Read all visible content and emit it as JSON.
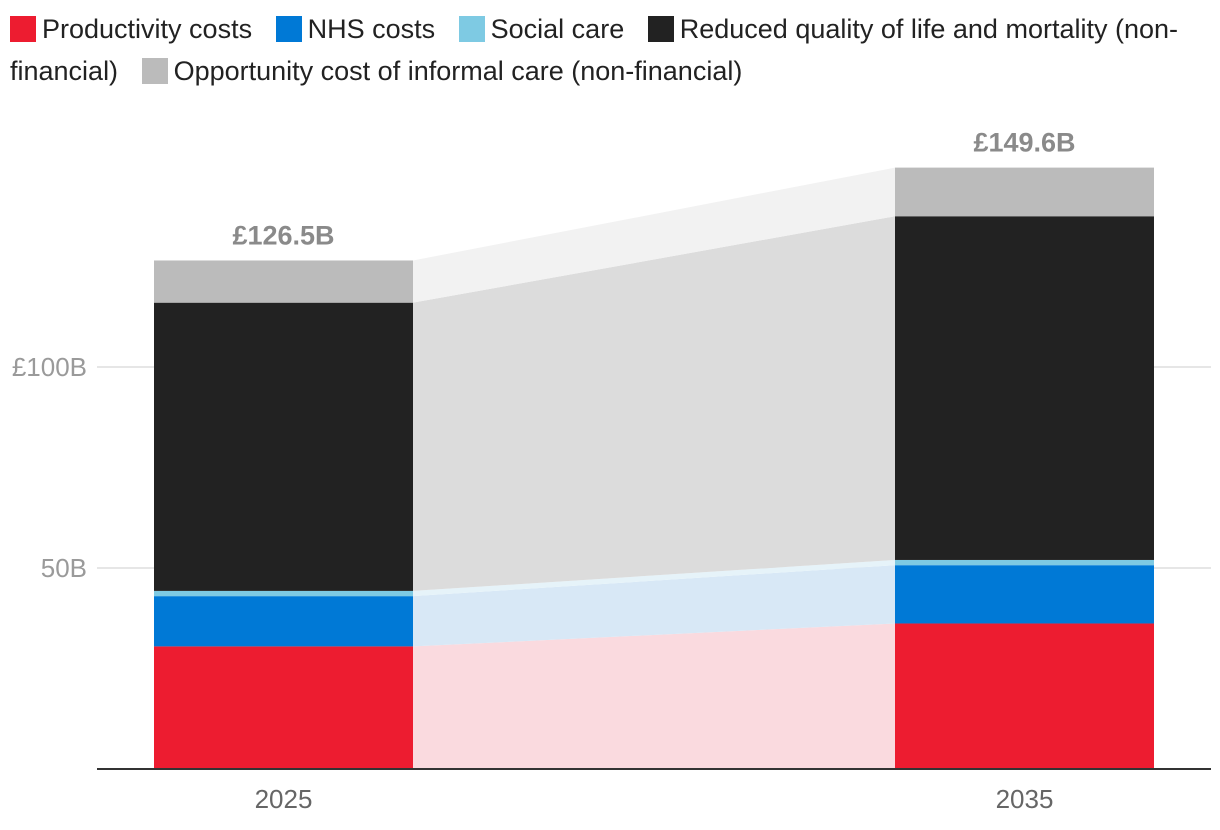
{
  "chart_data": {
    "type": "bar",
    "stacked": true,
    "title": "",
    "xlabel": "",
    "ylabel": "",
    "categories": [
      "2025",
      "2035"
    ],
    "ylim": [
      0,
      160
    ],
    "yticks": [
      {
        "value": 50,
        "label": "50B"
      },
      {
        "value": 100,
        "label": "£100B"
      }
    ],
    "totals": [
      {
        "value": 126.5,
        "label": "£126.5B"
      },
      {
        "value": 149.6,
        "label": "£149.6B"
      }
    ],
    "series": [
      {
        "name": "Productivity costs",
        "values": [
          30.5,
          36.2
        ],
        "color": "#ed1c30",
        "band_color": "#fadadf"
      },
      {
        "name": "NHS costs",
        "values": [
          12.5,
          14.5
        ],
        "color": "#0079d6",
        "band_color": "#d8e8f6"
      },
      {
        "name": "Social care",
        "values": [
          1.3,
          1.3
        ],
        "color": "#7ecae3",
        "band_color": "#e6f3f9"
      },
      {
        "name": "Reduced quality of life and mortality (non-financial)",
        "values": [
          71.7,
          85.5
        ],
        "color": "#222222",
        "band_color": "#dcdcdc"
      },
      {
        "name": "Opportunity cost of informal care (non-financial)",
        "values": [
          10.5,
          12.1
        ],
        "color": "#bbbbbb",
        "band_color": "#f2f2f2"
      }
    ],
    "legend_position": "top",
    "grid": true
  }
}
